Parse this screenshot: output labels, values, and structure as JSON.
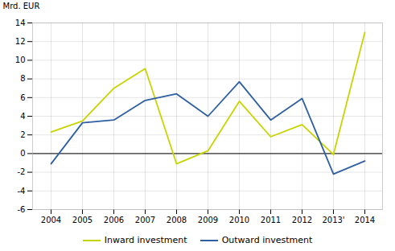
{
  "chart_data": {
    "type": "line",
    "ylabel": "Mrd. EUR",
    "categories": [
      "2004",
      "2005",
      "2006",
      "2007",
      "2008",
      "2009",
      "2010",
      "2011",
      "2012",
      "2013'",
      "2014"
    ],
    "series": [
      {
        "name": "Inward investment",
        "color": "#c8d400",
        "values": [
          2.3,
          3.5,
          7.0,
          9.1,
          -1.1,
          0.3,
          5.6,
          1.8,
          3.1,
          -0.1,
          13.0
        ]
      },
      {
        "name": "Outward investment",
        "color": "#2e5fa3",
        "values": [
          -1.1,
          3.3,
          3.6,
          5.7,
          6.4,
          4.0,
          7.7,
          3.6,
          5.9,
          -2.2,
          -0.8
        ]
      }
    ],
    "ylim": [
      -6,
      14
    ],
    "yticks": [
      -6,
      -4,
      -2,
      0,
      2,
      4,
      6,
      8,
      10,
      12,
      14
    ],
    "grid": true,
    "legend": "bottom"
  }
}
